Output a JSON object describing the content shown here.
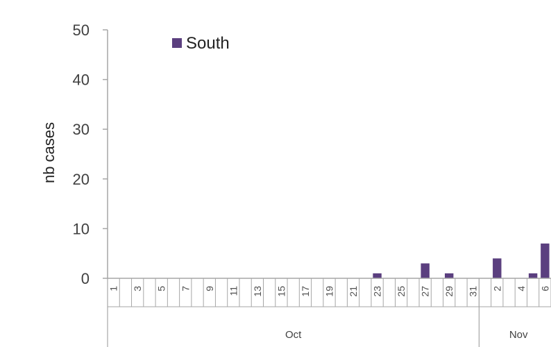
{
  "chart_data": {
    "type": "bar",
    "ylabel": "nb cases",
    "ylim": [
      0,
      50
    ],
    "yticks": [
      0,
      10,
      20,
      30,
      40,
      50
    ],
    "grid": false,
    "legend_position": "top-left",
    "categories": [
      "1",
      "2",
      "3",
      "4",
      "5",
      "6",
      "7",
      "8",
      "9",
      "10",
      "11",
      "12",
      "13",
      "14",
      "15",
      "16",
      "17",
      "18",
      "19",
      "20",
      "21",
      "22",
      "23",
      "24",
      "25",
      "26",
      "27",
      "28",
      "29",
      "30",
      "31",
      "1",
      "2",
      "3",
      "4",
      "5",
      "6"
    ],
    "category_labels": [
      "1",
      "",
      "3",
      "",
      "5",
      "",
      "7",
      "",
      "9",
      "",
      "11",
      "",
      "13",
      "",
      "15",
      "",
      "17",
      "",
      "19",
      "",
      "21",
      "",
      "23",
      "",
      "25",
      "",
      "27",
      "",
      "29",
      "",
      "31",
      "",
      "2",
      "",
      "4",
      "",
      "6"
    ],
    "groups": [
      {
        "label": "Oct",
        "start": 0,
        "count": 31
      },
      {
        "label": "Nov",
        "start": 31,
        "count": 6
      }
    ],
    "series": [
      {
        "name": "South",
        "color": "#5b3f7f",
        "values": [
          0,
          0,
          0,
          0,
          0,
          0,
          0,
          0,
          0,
          0,
          0,
          0,
          0,
          0,
          0,
          0,
          0,
          0,
          0,
          0,
          0,
          0,
          1,
          0,
          0,
          0,
          3,
          0,
          1,
          0,
          0,
          0,
          4,
          0,
          0,
          1,
          7
        ]
      }
    ]
  }
}
